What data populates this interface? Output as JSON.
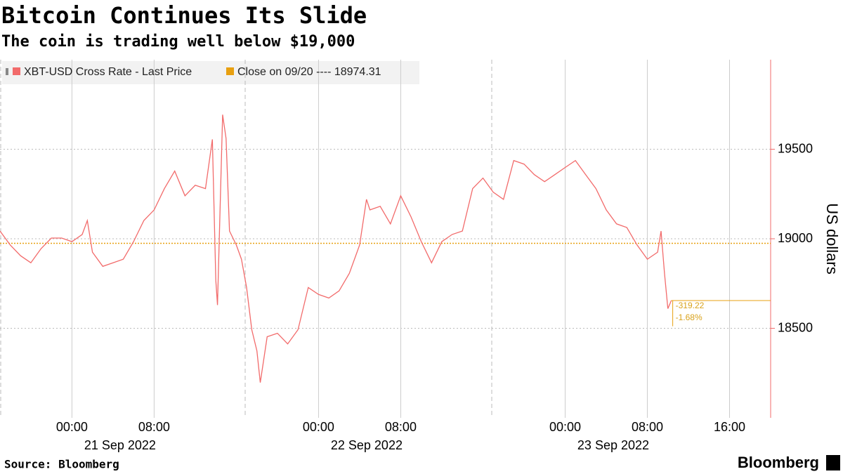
{
  "chart_data": {
    "type": "line",
    "title": "Bitcoin Continues Its Slide",
    "subtitle": "The coin is trading well below $19,000",
    "y_label": "US dollars",
    "source": "Source: Bloomberg",
    "brand": "Bloomberg",
    "series": [
      {
        "name": "XBT-USD Cross Rate - Last Price",
        "color": "#f26b6b",
        "x": [
          "2022-09-20T17:00",
          "2022-09-20T18:00",
          "2022-09-20T19:00",
          "2022-09-20T20:00",
          "2022-09-20T21:00",
          "2022-09-20T22:00",
          "2022-09-20T23:00",
          "2022-09-21T00:00",
          "2022-09-21T01:00",
          "2022-09-21T01:30",
          "2022-09-21T02:00",
          "2022-09-21T03:00",
          "2022-09-21T04:00",
          "2022-09-21T05:00",
          "2022-09-21T06:00",
          "2022-09-21T07:00",
          "2022-09-21T08:00",
          "2022-09-21T09:00",
          "2022-09-21T10:00",
          "2022-09-21T11:00",
          "2022-09-21T12:00",
          "2022-09-21T13:00",
          "2022-09-21T13:40",
          "2022-09-21T14:00",
          "2022-09-21T14:10",
          "2022-09-21T14:40",
          "2022-09-21T15:00",
          "2022-09-21T15:20",
          "2022-09-21T16:00",
          "2022-09-21T16:30",
          "2022-09-21T17:00",
          "2022-09-21T17:30",
          "2022-09-21T18:00",
          "2022-09-21T18:20",
          "2022-09-21T19:00",
          "2022-09-21T20:00",
          "2022-09-21T21:00",
          "2022-09-21T22:00",
          "2022-09-21T23:00",
          "2022-09-22T00:00",
          "2022-09-22T01:00",
          "2022-09-22T02:00",
          "2022-09-22T03:00",
          "2022-09-22T04:00",
          "2022-09-22T04:40",
          "2022-09-22T05:00",
          "2022-09-22T06:00",
          "2022-09-22T07:00",
          "2022-09-22T08:00",
          "2022-09-22T09:00",
          "2022-09-22T10:00",
          "2022-09-22T11:00",
          "2022-09-22T12:00",
          "2022-09-22T13:00",
          "2022-09-22T14:00",
          "2022-09-22T15:00",
          "2022-09-22T16:00",
          "2022-09-22T17:00",
          "2022-09-22T18:00",
          "2022-09-22T19:00",
          "2022-09-22T20:00",
          "2022-09-22T21:00",
          "2022-09-22T22:00",
          "2022-09-22T23:00",
          "2022-09-23T00:00",
          "2022-09-23T01:00",
          "2022-09-23T02:00",
          "2022-09-23T03:00",
          "2022-09-23T04:00",
          "2022-09-23T05:00",
          "2022-09-23T06:00",
          "2022-09-23T07:00",
          "2022-09-23T08:00",
          "2022-09-23T09:00",
          "2022-09-23T09:20",
          "2022-09-23T09:40",
          "2022-09-23T10:00",
          "2022-09-23T10:20"
        ],
        "values": [
          19043,
          18965,
          18905,
          18866,
          18945,
          19004,
          19004,
          18984,
          19024,
          19102,
          18925,
          18846,
          18866,
          18886,
          18984,
          19102,
          19161,
          19280,
          19378,
          19240,
          19299,
          19280,
          19555,
          18768,
          18630,
          19693,
          19560,
          19043,
          18965,
          18886,
          18728,
          18492,
          18374,
          18197,
          18453,
          18472,
          18413,
          18492,
          18728,
          18689,
          18669,
          18709,
          18807,
          18965,
          19220,
          19161,
          19181,
          19083,
          19240,
          19122,
          18984,
          18866,
          18984,
          19024,
          19043,
          19280,
          19339,
          19260,
          19220,
          19437,
          19417,
          19358,
          19319,
          19358,
          19398,
          19437,
          19358,
          19280,
          19161,
          19083,
          19063,
          18965,
          18886,
          18925,
          19043,
          18807,
          18610,
          18655.09
        ]
      }
    ],
    "reference": {
      "name": "Close on 09/20 ---- 18974.31",
      "value": 18974.31,
      "color": "#e8a010"
    },
    "annotations": [
      "-319.22",
      "-1.68%"
    ],
    "xlim": [
      "2022-09-20T17:00",
      "2022-09-23T20:00"
    ],
    "xticks": [
      {
        "value": "2022-09-21T00:00",
        "label": "00:00"
      },
      {
        "value": "2022-09-21T08:00",
        "label": "08:00"
      },
      {
        "value": "2022-09-22T00:00",
        "label": "00:00"
      },
      {
        "value": "2022-09-22T08:00",
        "label": "08:00"
      },
      {
        "value": "2022-09-23T00:00",
        "label": "00:00"
      },
      {
        "value": "2022-09-23T08:00",
        "label": "08:00"
      },
      {
        "value": "2022-09-23T16:00",
        "label": "16:00"
      }
    ],
    "date_labels": [
      "21 Sep 2022",
      "22 Sep 2022",
      "23 Sep 2022"
    ],
    "ylim": [
      18000,
      20000
    ],
    "yticks": [
      18500,
      19000,
      19500
    ],
    "grid": true
  }
}
